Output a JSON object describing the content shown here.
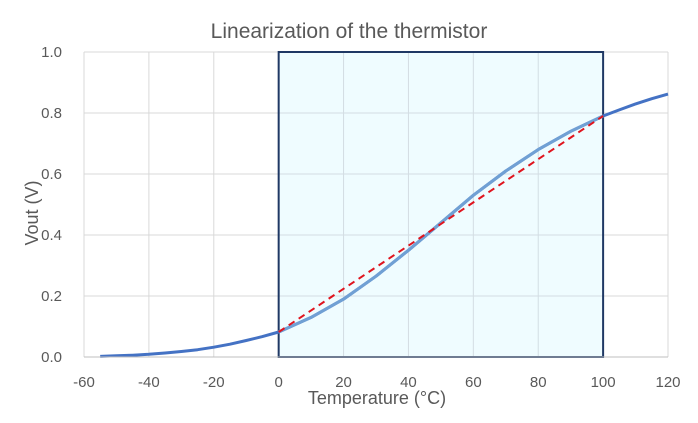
{
  "chart_data": {
    "type": "line",
    "title": "Linearization of the thermistor",
    "xlabel": "Temperature (°C)",
    "ylabel": "Vout (V)",
    "xlim": [
      -60,
      120
    ],
    "ylim": [
      0,
      1.0
    ],
    "x_ticks": [
      -60,
      -40,
      -20,
      0,
      20,
      40,
      60,
      80,
      100,
      120
    ],
    "y_ticks": [
      0.0,
      0.2,
      0.4,
      0.6,
      0.8,
      1.0
    ],
    "x_tick_labels": [
      "-60",
      "-40",
      "-20",
      "0",
      "20",
      "40",
      "60",
      "80",
      "100",
      "120"
    ],
    "y_tick_labels": [
      "0.0",
      "0.2",
      "0.4",
      "0.6",
      "0.8",
      "1.0"
    ],
    "grid": true,
    "legend": "none",
    "highlight_range": {
      "x": [
        0,
        100
      ],
      "y": [
        0,
        1.0
      ],
      "fill": "#effcff",
      "stroke": "#1f3864"
    },
    "series": [
      {
        "style": "solid",
        "color": "#4472c4",
        "x": [
          -55,
          -50,
          -45,
          -40,
          -35,
          -30,
          -25,
          -20,
          -15,
          -10,
          -5,
          0,
          10,
          20,
          30,
          40,
          50,
          60,
          70,
          80,
          90,
          100,
          105,
          110,
          115,
          120
        ],
        "y": [
          0.002,
          0.004,
          0.006,
          0.009,
          0.013,
          0.018,
          0.024,
          0.032,
          0.042,
          0.054,
          0.067,
          0.082,
          0.13,
          0.19,
          0.265,
          0.35,
          0.44,
          0.53,
          0.61,
          0.68,
          0.74,
          0.79,
          0.81,
          0.83,
          0.847,
          0.862
        ]
      },
      {
        "style": "dashed",
        "color": "#e0141e",
        "x": [
          0,
          100
        ],
        "y": [
          0.082,
          0.79
        ]
      }
    ]
  }
}
